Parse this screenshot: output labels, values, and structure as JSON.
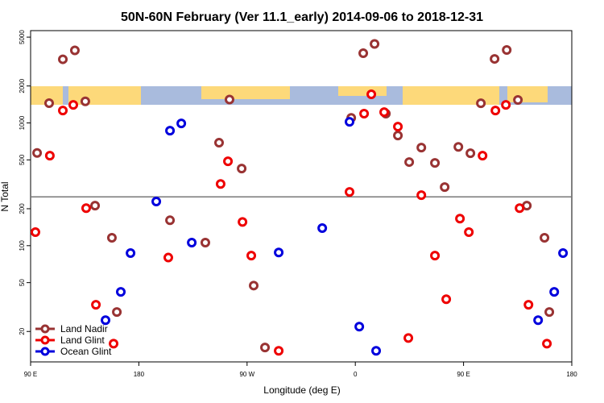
{
  "chart_data": {
    "type": "scatter",
    "title": "50N-60N February (Ver 11.1_early)   2014-09-06 to 2018-12-31",
    "xlabel": "Longitude (deg E)",
    "ylabel": "N Total",
    "xlim": [
      90,
      540
    ],
    "xticks": [
      {
        "value": 90,
        "label": "90 E"
      },
      {
        "value": 180,
        "label": "180"
      },
      {
        "value": 270,
        "label": "90 W"
      },
      {
        "value": 360,
        "label": "0"
      },
      {
        "value": 450,
        "label": "90 E"
      },
      {
        "value": 540,
        "label": "180"
      }
    ],
    "ylim": [
      11.3,
      5650
    ],
    "log_y": true,
    "yticks": [
      20,
      50,
      100,
      200,
      500,
      1000,
      2000,
      5000
    ],
    "reference_line": 250,
    "legend": "lower-left",
    "series": [
      {
        "name": "Land Nadir",
        "color": "#993333",
        "x": [
          95.4,
          105.4,
          116.8,
          126.8,
          135.5,
          143.6,
          157.6,
          161.7,
          205.9,
          235.3,
          246.7,
          255.4,
          265.5,
          275.5,
          284.9,
          356.6,
          366.6,
          376,
          385.4,
          395.4,
          404.8,
          414.9,
          426.2,
          434.3,
          445.7,
          455.7,
          464.4,
          475.8,
          485.9,
          495.2,
          502.6,
          517.3,
          521.3
        ],
        "values": [
          570,
          1450,
          3300,
          3900,
          1500,
          212,
          116,
          28.8,
          161,
          106,
          690,
          1550,
          425,
          47.3,
          14.8,
          1100,
          3700,
          4400,
          1190,
          790,
          480,
          630,
          472,
          300,
          638,
          566,
          1445,
          3325,
          3930,
          1538,
          212,
          116,
          28.8
        ]
      },
      {
        "name": "Land Glint",
        "color": "#ee0000",
        "x": [
          94,
          106,
          116.8,
          125.5,
          136.2,
          144.3,
          159,
          204.5,
          248,
          254.1,
          266.2,
          273.5,
          296.3,
          355.2,
          367.3,
          373.3,
          384,
          395.4,
          414.9,
          426.2,
          435.6,
          447,
          454.4,
          465.8,
          476.5,
          485.2,
          496.6,
          504,
          519.3,
          404.1
        ],
        "values": [
          129,
          541,
          1262,
          1403,
          202,
          33,
          15.9,
          80,
          318,
          487,
          156,
          83,
          13.9,
          274,
          1190,
          1710,
          1224,
          933,
          258,
          83,
          36.6,
          166,
          129,
          541,
          1262,
          1403,
          202,
          33,
          15.9,
          17.7
        ]
      },
      {
        "name": "Ocean Glint",
        "color": "#0000dd",
        "x": [
          152.3,
          165,
          173.1,
          194.5,
          205.9,
          215.3,
          224,
          296.3,
          332.5,
          355.2,
          363.3,
          377.3,
          512,
          525.4,
          532.7
        ],
        "values": [
          24.7,
          42,
          87,
          229,
          865,
          991,
          106,
          88,
          139,
          1021,
          21.9,
          13.9,
          24.7,
          42,
          87
        ]
      }
    ]
  }
}
